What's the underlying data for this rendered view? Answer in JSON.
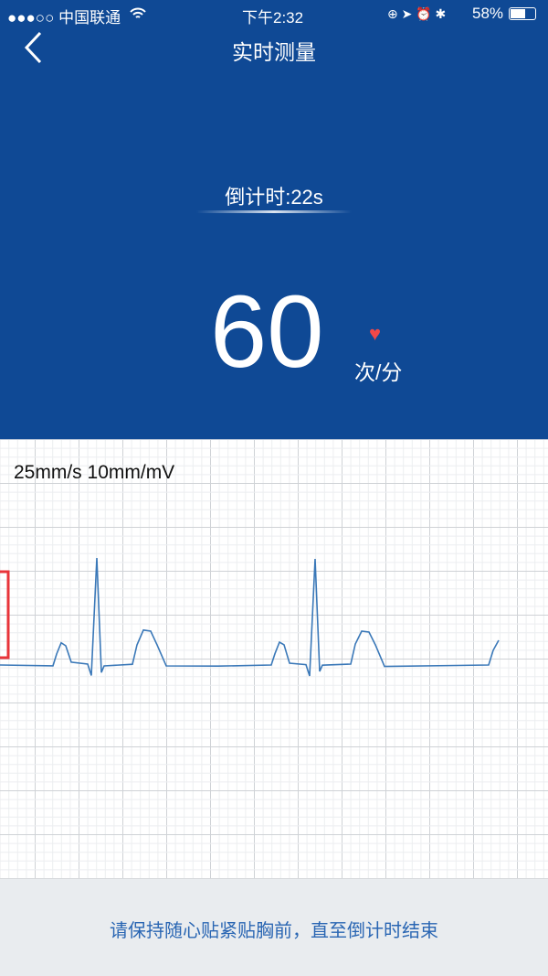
{
  "status_bar": {
    "carrier": "●●●○○ 中国联通",
    "time": "下午2:32",
    "battery": "58%",
    "icons": [
      "wifi-icon",
      "orientation-lock-icon",
      "location-icon",
      "alarm-icon",
      "bluetooth-icon",
      "battery-icon"
    ]
  },
  "nav": {
    "title": "实时测量",
    "back_icon": "chevron-left-icon"
  },
  "measure": {
    "countdown": "倒计时:22s",
    "heart_rate": "60",
    "unit": "次/分",
    "heart_color": "#f24848"
  },
  "ecg": {
    "scale_label": "25mm/s 10mm/mV",
    "trace_color": "#3a78b8",
    "calibration_color": "#e8343a"
  },
  "footer": {
    "tip": "请保持随心贴紧贴胸前，直至倒计时结束"
  },
  "colors": {
    "header": "#0f4995",
    "footer": "#e9ecef"
  }
}
